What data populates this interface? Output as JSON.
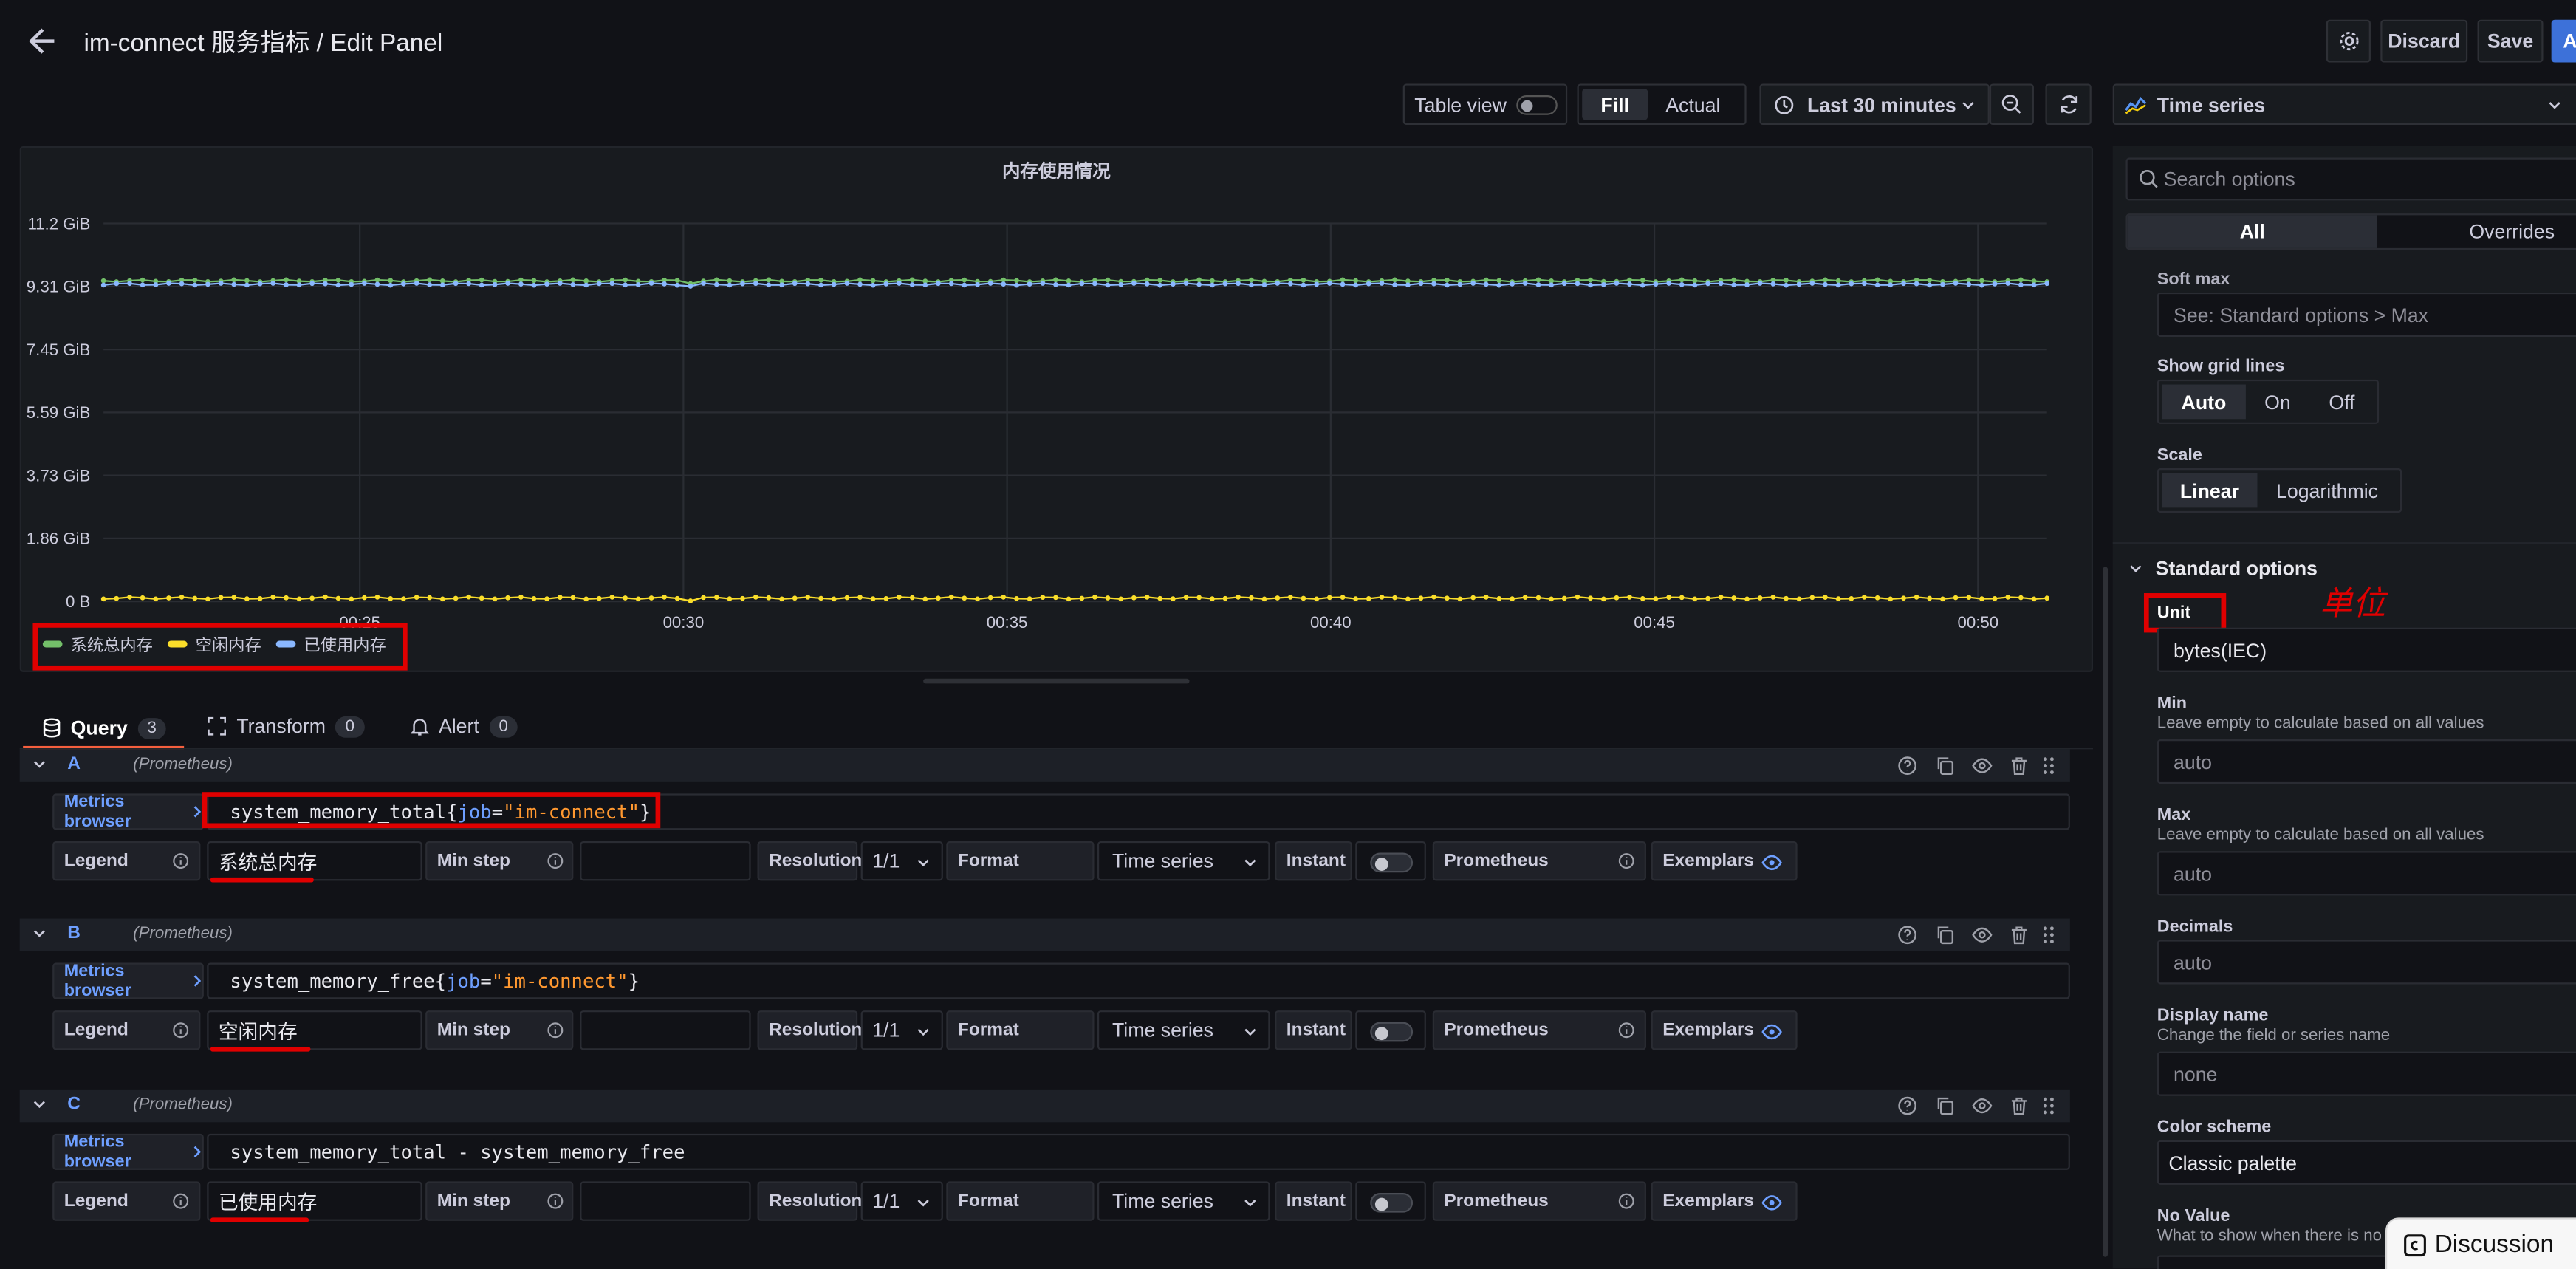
{
  "header": {
    "title_prefix": "im-connect 服务指标",
    "title_sep": " / ",
    "title_page": "Edit Panel",
    "discard": "Discard",
    "save": "Save",
    "apply": "A"
  },
  "toolbar": {
    "table_view": "Table view",
    "fill": "Fill",
    "actual": "Actual",
    "time_range": "Last 30 minutes",
    "viz_type": "Time series"
  },
  "chart_data": {
    "type": "line",
    "title": "内存使用情况",
    "y_ticks": [
      "11.2 GiB",
      "9.31 GiB",
      "7.45 GiB",
      "5.59 GiB",
      "3.73 GiB",
      "1.86 GiB",
      "0 B"
    ],
    "x_ticks": [
      "00:25",
      "00:30",
      "00:35",
      "00:40",
      "00:45",
      "00:50"
    ],
    "ylim_gib": [
      0,
      11.2
    ],
    "series": [
      {
        "name": "系统总内存",
        "color": "#73bf69",
        "approx_value_gib": 9.5
      },
      {
        "name": "空闲内存",
        "color": "#fade2a",
        "approx_value_gib": 0.1
      },
      {
        "name": "已使用内存",
        "color": "#8ab8ff",
        "approx_value_gib": 9.4
      }
    ]
  },
  "tabs": {
    "query": "Query",
    "query_count": "3",
    "transform": "Transform",
    "transform_count": "0",
    "alert": "Alert",
    "alert_count": "0"
  },
  "queries": [
    {
      "ref": "A",
      "datasource": "(Prometheus)",
      "metric_plain": "system_memory_total{",
      "metric_label": "job",
      "metric_eq": "=",
      "metric_value": "\"im-connect\"",
      "metric_close": "}",
      "legend": "系统总内存"
    },
    {
      "ref": "B",
      "datasource": "(Prometheus)",
      "metric_plain": "system_memory_free{",
      "metric_label": "job",
      "metric_eq": "=",
      "metric_value": "\"im-connect\"",
      "metric_close": "}",
      "legend": "空闲内存"
    },
    {
      "ref": "C",
      "datasource": "(Prometheus)",
      "metric_plain": "system_memory_total - system_memory_free",
      "metric_label": "",
      "metric_eq": "",
      "metric_value": "",
      "metric_close": "",
      "legend": "已使用内存"
    }
  ],
  "query_fields": {
    "metrics_browser": "Metrics browser",
    "legend": "Legend",
    "min_step": "Min step",
    "resolution": "Resolution",
    "resolution_value": "1/1",
    "format": "Format",
    "format_value": "Time series",
    "instant": "Instant",
    "prometheus": "Prometheus",
    "exemplars": "Exemplars"
  },
  "options": {
    "search_placeholder": "Search options",
    "tab_all": "All",
    "tab_overrides": "Overrides",
    "soft_max_label": "Soft max",
    "soft_max_placeholder": "See: Standard options > Max",
    "grid_lines_label": "Show grid lines",
    "grid_auto": "Auto",
    "grid_on": "On",
    "grid_off": "Off",
    "scale_label": "Scale",
    "scale_linear": "Linear",
    "scale_log": "Logarithmic",
    "standard_options": "Standard options",
    "unit_label": "Unit",
    "unit_annotation": "单位",
    "unit_value": "bytes(IEC)",
    "min_label": "Min",
    "min_desc": "Leave empty to calculate based on all values",
    "min_value": "auto",
    "max_label": "Max",
    "max_desc": "Leave empty to calculate based on all values",
    "max_value": "auto",
    "decimals_label": "Decimals",
    "decimals_value": "auto",
    "display_name_label": "Display name",
    "display_name_desc": "Change the field or series name",
    "display_name_value": "none",
    "color_scheme_label": "Color scheme",
    "color_scheme_value": "Classic palette",
    "no_value_label": "No Value",
    "no_value_desc": "What to show when there is no d"
  },
  "discussion": "Discussion"
}
